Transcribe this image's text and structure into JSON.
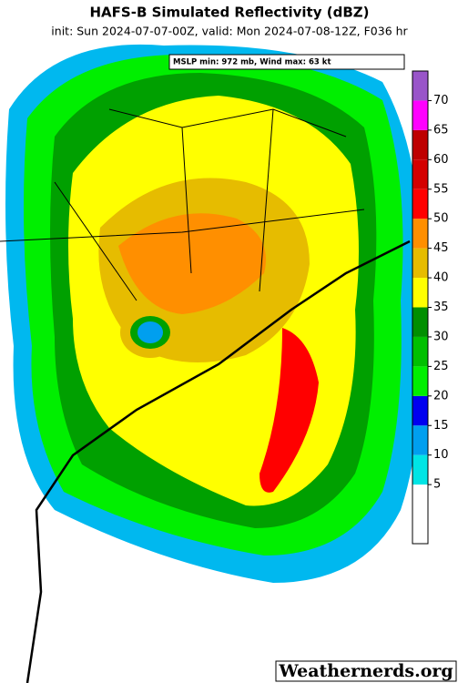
{
  "header": {
    "title": "HAFS-B Simulated Reflectivity (dBZ)",
    "subtitle": "init: Sun 2024-07-07-00Z, valid: Mon 2024-07-08-12Z, F036 hr"
  },
  "info_box": "MSLP min: 972 mb, Wind max: 63 kt",
  "colorbar": {
    "ticks": [
      5,
      10,
      15,
      20,
      25,
      30,
      35,
      40,
      45,
      50,
      55,
      60,
      65,
      70
    ],
    "colors": [
      "#00e5e5",
      "#009fef",
      "#0000f0",
      "#00ef00",
      "#00c000",
      "#008f00",
      "#ffff00",
      "#e6bc00",
      "#ff8f00",
      "#ff0000",
      "#d40000",
      "#be0000",
      "#ff00ff",
      "#9955c9"
    ]
  },
  "watermark": "Weathernerds.org"
}
